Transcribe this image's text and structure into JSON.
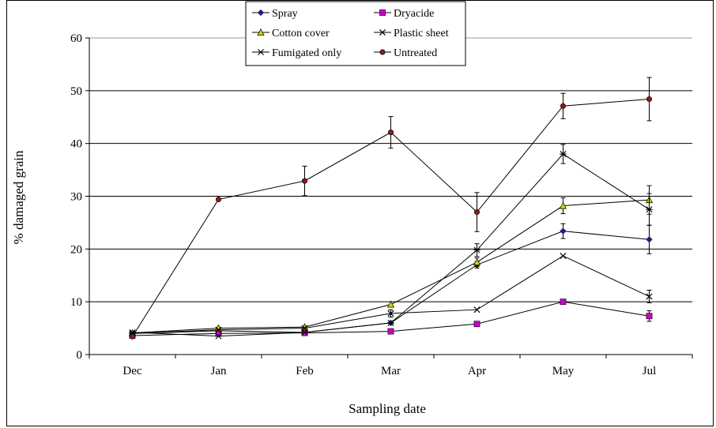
{
  "chart_data": {
    "type": "line",
    "title": "",
    "xlabel": "Sampling date",
    "ylabel": "% damaged grain",
    "categories": [
      "Dec",
      "Jan",
      "Feb",
      "Mar",
      "Apr",
      "May",
      "Jul"
    ],
    "ylim": [
      0,
      60
    ],
    "yticks": [
      0,
      10,
      20,
      30,
      40,
      50,
      60
    ],
    "grid": "horizontal major gridlines",
    "legend": "top-center, boxed, 3 rows x 2 columns",
    "series": [
      {
        "name": "Spray",
        "color": "#1f1f7a",
        "marker": "diamond",
        "values": [
          4.0,
          4.5,
          4.2,
          6.0,
          17.0,
          23.4,
          21.8
        ],
        "errors": [
          0.3,
          0.3,
          0.3,
          0.4,
          0.6,
          1.4,
          2.7
        ]
      },
      {
        "name": "Dryacide",
        "color": "#cc00cc",
        "marker": "square",
        "values": [
          3.6,
          4.0,
          4.1,
          4.4,
          5.8,
          10.0,
          7.3
        ],
        "errors": [
          0.2,
          0.2,
          0.2,
          0.2,
          0.3,
          0.5,
          1.0
        ]
      },
      {
        "name": "Cotton cover",
        "color": "#d4d400",
        "marker": "triangle",
        "values": [
          4.1,
          5.0,
          5.2,
          9.5,
          17.5,
          28.2,
          29.3
        ],
        "errors": [
          0.3,
          0.3,
          0.3,
          0.4,
          0.8,
          1.5,
          2.7
        ]
      },
      {
        "name": "Plastic sheet",
        "color": "#000000",
        "marker": "x",
        "values": [
          4.0,
          4.7,
          5.0,
          7.8,
          8.5,
          18.7,
          11.0
        ],
        "errors": [
          0.3,
          0.3,
          0.3,
          0.7,
          0.4,
          0.5,
          1.2
        ]
      },
      {
        "name": "Fumigated only",
        "color": "#000000",
        "marker": "asterisk",
        "values": [
          4.2,
          3.5,
          4.2,
          6.0,
          19.8,
          38.0,
          27.5
        ],
        "errors": [
          0.3,
          0.3,
          0.3,
          0.4,
          1.2,
          1.8,
          3.0
        ]
      },
      {
        "name": "Untreated",
        "color": "#8b1a1a",
        "marker": "circle",
        "values": [
          3.4,
          29.4,
          32.9,
          42.1,
          27.0,
          47.1,
          48.4
        ],
        "errors": [
          0.2,
          0.3,
          2.8,
          3.0,
          3.7,
          2.4,
          4.1
        ]
      }
    ]
  }
}
